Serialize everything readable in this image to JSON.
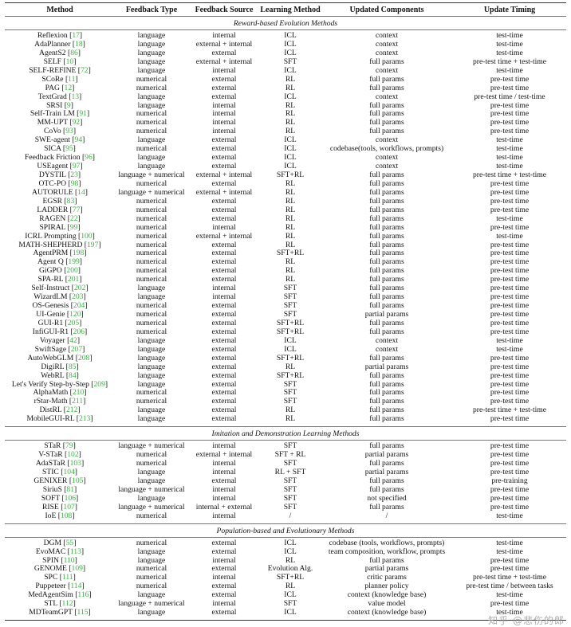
{
  "headers": [
    "Method",
    "Feedback Type",
    "Feedback Source",
    "Learning Method",
    "Updated Components",
    "Update Timing"
  ],
  "ref_color": "#3cb043",
  "sections": [
    {
      "title": "Reward-based Evolution Methods",
      "rows": [
        [
          "Reflexion",
          "17",
          "language",
          "internal",
          "ICL",
          "context",
          "test-time"
        ],
        [
          "AdaPlanner",
          "18",
          "language",
          "external + internal",
          "ICL",
          "context",
          "test-time"
        ],
        [
          "AgentS2",
          "86",
          "language",
          "external",
          "ICL",
          "context",
          "test-time"
        ],
        [
          "SELF",
          "10",
          "language",
          "external + internal",
          "SFT",
          "full params",
          "pre-test time + test-time"
        ],
        [
          "SELF-REFINE",
          "72",
          "language",
          "internal",
          "ICL",
          "context",
          "test-time"
        ],
        [
          "SCoRe",
          "11",
          "numerical",
          "external",
          "RL",
          "full params",
          "pre-test time"
        ],
        [
          "PAG",
          "12",
          "numerical",
          "external",
          "RL",
          "full params",
          "pre-test time"
        ],
        [
          "TextGrad",
          "13",
          "language",
          "external",
          "ICL",
          "context",
          "pre-test time / test-time"
        ],
        [
          "SRSI",
          "9",
          "language",
          "internal",
          "RL",
          "full params",
          "pre-test time"
        ],
        [
          "Self-Train LM",
          "91",
          "numerical",
          "internal",
          "RL",
          "full params",
          "pre-test time"
        ],
        [
          "MM-UPT",
          "92",
          "numerical",
          "internal",
          "RL",
          "full params",
          "pre-test time"
        ],
        [
          "CoVo",
          "93",
          "numerical",
          "internal",
          "RL",
          "full params",
          "pre-test time"
        ],
        [
          "SWE-agent",
          "94",
          "language",
          "external",
          "ICL",
          "context",
          "test-time"
        ],
        [
          "SICA",
          "95",
          "numerical",
          "external",
          "ICL",
          "codebase(tools, workflows, prompts)",
          "test-time"
        ],
        [
          "Feedback Friction",
          "96",
          "language",
          "external",
          "ICL",
          "context",
          "test-time"
        ],
        [
          "USEagent",
          "97",
          "language",
          "external",
          "ICL",
          "context",
          "test-time"
        ],
        [
          "DYSTIL",
          "23",
          "language + numerical",
          "external + internal",
          "SFT+RL",
          "full params",
          "pre-test time + test-time"
        ],
        [
          "OTC-PO",
          "98",
          "numerical",
          "external",
          "RL",
          "full params",
          "pre-test time"
        ],
        [
          "AUTORULE",
          "14",
          "language + numerical",
          "external + internal",
          "RL",
          "full params",
          "pre-test time"
        ],
        [
          "EGSR",
          "83",
          "numerical",
          "external",
          "RL",
          "full params",
          "pre-test time"
        ],
        [
          "LADDER",
          "77",
          "numerical",
          "external",
          "RL",
          "full params",
          "pre-test time"
        ],
        [
          "RAGEN",
          "22",
          "numerical",
          "external",
          "RL",
          "full params",
          "test-time"
        ],
        [
          "SPIRAL",
          "99",
          "numerical",
          "internal",
          "RL",
          "full params",
          "pre-test time"
        ],
        [
          "ICRL Prompting",
          "100",
          "numerical",
          "external + internal",
          "RL",
          "full params",
          "test-time"
        ],
        [
          "MATH-SHEPHERD",
          "197",
          "numerical",
          "external",
          "RL",
          "full params",
          "pre-test time"
        ],
        [
          "AgentPRM",
          "198",
          "numerical",
          "external",
          "SFT+RL",
          "full params",
          "pre-test time"
        ],
        [
          "Agent Q",
          "199",
          "numerical",
          "external",
          "RL",
          "full params",
          "pre-test time"
        ],
        [
          "GiGPO",
          "200",
          "numerical",
          "external",
          "RL",
          "full params",
          "pre-test time"
        ],
        [
          "SPA-RL",
          "201",
          "numerical",
          "external",
          "RL",
          "full params",
          "pre-test time"
        ],
        [
          "Self-Instruct",
          "202",
          "language",
          "internal",
          "SFT",
          "full params",
          "pre-test time"
        ],
        [
          "WizardLM",
          "203",
          "language",
          "internal",
          "SFT",
          "full params",
          "pre-test time"
        ],
        [
          "OS-Genesis",
          "204",
          "numerical",
          "external",
          "SFT",
          "full params",
          "pre-test time"
        ],
        [
          "UI-Genie",
          "120",
          "numerical",
          "external",
          "SFT",
          "partial params",
          "pre-test time"
        ],
        [
          "GUI-R1",
          "205",
          "numerical",
          "external",
          "SFT+RL",
          "full params",
          "pre-test time"
        ],
        [
          "InfiGUI-R1",
          "206",
          "numerical",
          "external",
          "SFT+RL",
          "full params",
          "pre-test time"
        ],
        [
          "Voyager",
          "42",
          "language",
          "external",
          "ICL",
          "context",
          "test-time"
        ],
        [
          "SwiftSage",
          "207",
          "language",
          "external",
          "ICL",
          "context",
          "test-time"
        ],
        [
          "AutoWebGLM",
          "208",
          "language",
          "external",
          "SFT+RL",
          "full params",
          "pre-test time"
        ],
        [
          "DigiRL",
          "85",
          "language",
          "external",
          "RL",
          "partial params",
          "pre-test time"
        ],
        [
          "WebRL",
          "84",
          "language",
          "external",
          "SFT+RL",
          "full params",
          "pre-test time"
        ],
        [
          "Let's Verify Step-by-Step",
          "209",
          "language",
          "external",
          "SFT",
          "full params",
          "pre-test time"
        ],
        [
          "AlphaMath",
          "210",
          "numerical",
          "external",
          "SFT",
          "full params",
          "pre-test time"
        ],
        [
          "rStar-Math",
          "211",
          "numerical",
          "external",
          "SFT",
          "full params",
          "pre-test time"
        ],
        [
          "DistRL",
          "212",
          "language",
          "external",
          "RL",
          "full params",
          "pre-test time + test-time"
        ],
        [
          "MobileGUI-RL",
          "213",
          "language",
          "external",
          "RL",
          "full params",
          "pre-test time"
        ]
      ]
    },
    {
      "title": "Imitation and Demonstration Learning Methods",
      "rows": [
        [
          "STaR",
          "79",
          "language + numerical",
          "internal",
          "SFT",
          "full params",
          "pre-test time"
        ],
        [
          "V-STaR",
          "102",
          "numerical",
          "external + internal",
          "SFT + RL",
          "partial params",
          "pre-test time"
        ],
        [
          "AdaSTaR",
          "103",
          "numerical",
          "internal",
          "SFT",
          "full params",
          "pre-test time"
        ],
        [
          "STIC",
          "104",
          "language",
          "internal",
          "RL + SFT",
          "partial params",
          "pre-test time"
        ],
        [
          "GENIXER",
          "105",
          "language",
          "external",
          "SFT",
          "full params",
          "pre-training"
        ],
        [
          "SiriuS",
          "81",
          "language + numerical",
          "internal",
          "SFT",
          "full params",
          "pre-test time"
        ],
        [
          "SOFT",
          "106",
          "language",
          "internal",
          "SFT",
          "not specified",
          "pre-test time"
        ],
        [
          "RISE",
          "107",
          "language + numerical",
          "internal + external",
          "SFT",
          "full params",
          "pre-test time"
        ],
        [
          "IoE",
          "108",
          "numerical",
          "internal",
          "/",
          "/",
          "test-time"
        ]
      ]
    },
    {
      "title": "Population-based and Evolutionary Methods",
      "rows": [
        [
          "DGM",
          "55",
          "numerical",
          "external",
          "ICL",
          "codebase (tools, workflows, prompts)",
          "test-time"
        ],
        [
          "EvoMAC",
          "113",
          "language",
          "external",
          "ICL",
          "team composition, workflow, prompts",
          "test-time"
        ],
        [
          "SPIN",
          "110",
          "language",
          "internal",
          "RL",
          "full params",
          "pre-test time"
        ],
        [
          "GENOME",
          "109",
          "numerical",
          "external",
          "Evolution Alg.",
          "partial params",
          "pre-test time"
        ],
        [
          "SPC",
          "111",
          "numerical",
          "internal",
          "SFT+RL",
          "critic params",
          "pre-test time + test-time"
        ],
        [
          "Puppeteer",
          "114",
          "numerical",
          "external",
          "RL",
          "planner policy",
          "pre-test time / between tasks"
        ],
        [
          "MedAgentSim",
          "116",
          "language",
          "external",
          "ICL",
          "context (knowledge base)",
          "test-time"
        ],
        [
          "STL",
          "112",
          "language + numerical",
          "internal",
          "SFT",
          "value model",
          "pre-test time"
        ],
        [
          "MDTeamGPT",
          "115",
          "language",
          "external",
          "ICL",
          "context (knowledge base)",
          "test-time"
        ]
      ]
    }
  ],
  "watermark": "知乎 @悲伤的郎"
}
